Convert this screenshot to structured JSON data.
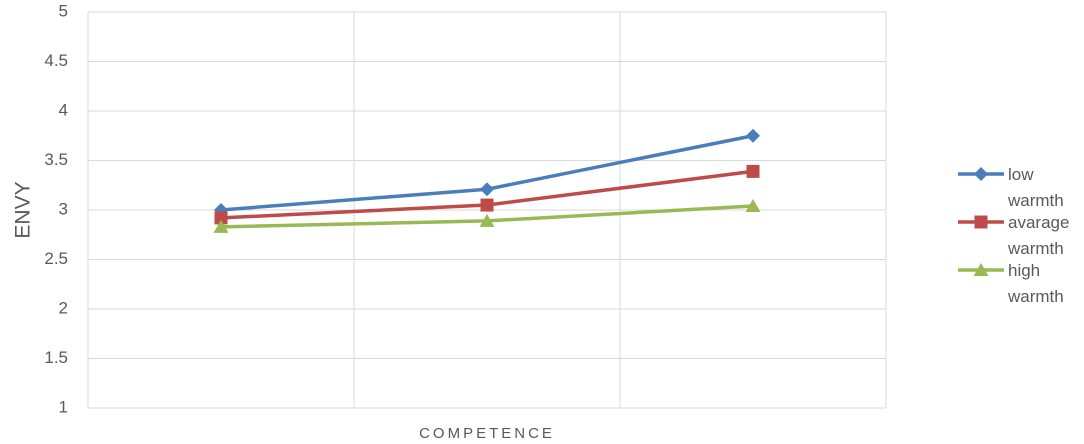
{
  "chart_data": {
    "type": "line",
    "x_label": "COMPETENCE",
    "y_label": "ENVY",
    "categories": [
      null,
      null,
      null
    ],
    "series": [
      {
        "name": "low warmth",
        "color": "#4a7ebb",
        "marker": "diamond",
        "values": [
          3.0,
          3.21,
          3.75
        ]
      },
      {
        "name": "avarage warmth",
        "color": "#be4b48",
        "marker": "square",
        "values": [
          2.92,
          3.05,
          3.39
        ]
      },
      {
        "name": "high warmth",
        "color": "#98b954",
        "marker": "triangle",
        "values": [
          2.83,
          2.89,
          3.04
        ]
      }
    ],
    "ylim": [
      1,
      5
    ],
    "yticks": [
      1,
      1.5,
      2,
      2.5,
      3,
      3.5,
      4,
      4.5,
      5
    ],
    "grid": true,
    "legend": "right"
  }
}
